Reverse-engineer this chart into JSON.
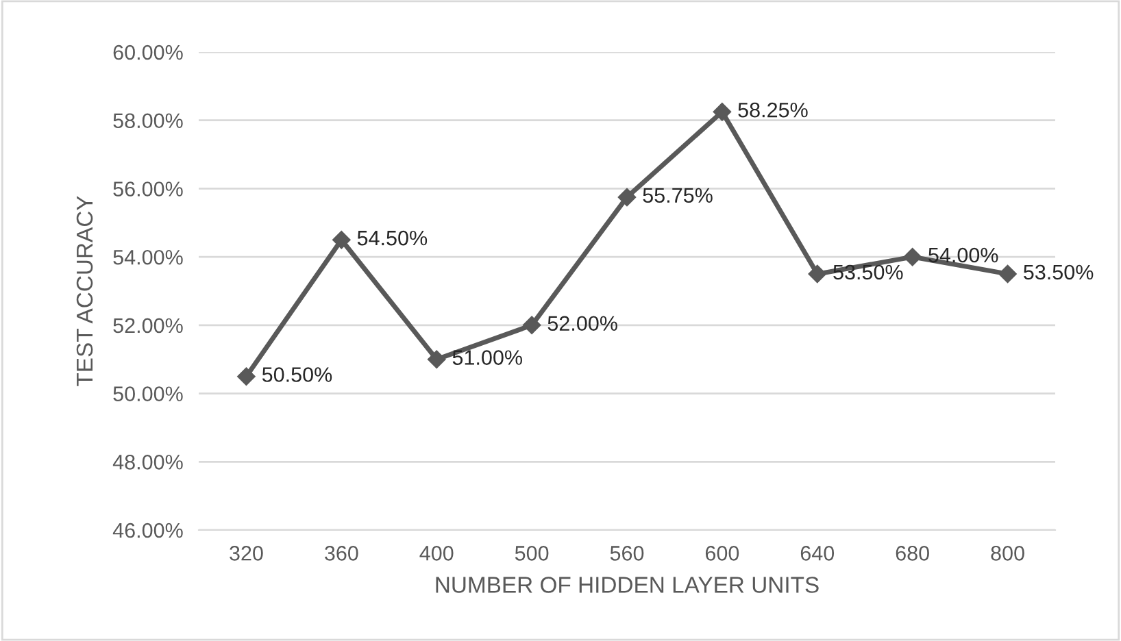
{
  "chart_data": {
    "type": "line",
    "xlabel": "NUMBER OF HIDDEN LAYER UNITS",
    "ylabel": "TEST ACCURACY",
    "categories": [
      "320",
      "360",
      "400",
      "500",
      "560",
      "600",
      "640",
      "680",
      "800"
    ],
    "series": [
      {
        "color": "#595959",
        "values": [
          50.5,
          54.5,
          51,
          52,
          55.75,
          58.25,
          53.5,
          54,
          53.5
        ],
        "value_labels": [
          "50.50%",
          "54.50%",
          "51.00%",
          "52.00%",
          "55.75%",
          "58.25%",
          "53.50%",
          "54.00%",
          "53.50%"
        ]
      }
    ],
    "ylim": [
      46,
      60
    ],
    "yticks": [
      {
        "value": 46,
        "label": "46.00%"
      },
      {
        "value": 48,
        "label": "48.00%"
      },
      {
        "value": 50,
        "label": "50.00%"
      },
      {
        "value": 52,
        "label": "52.00%"
      },
      {
        "value": 54,
        "label": "54.00%"
      },
      {
        "value": 56,
        "label": "56.00%"
      },
      {
        "value": 58,
        "label": "58.00%"
      },
      {
        "value": 60,
        "label": "60.00%"
      }
    ],
    "grid": "y",
    "marker": "diamond",
    "line_style": "solid"
  }
}
